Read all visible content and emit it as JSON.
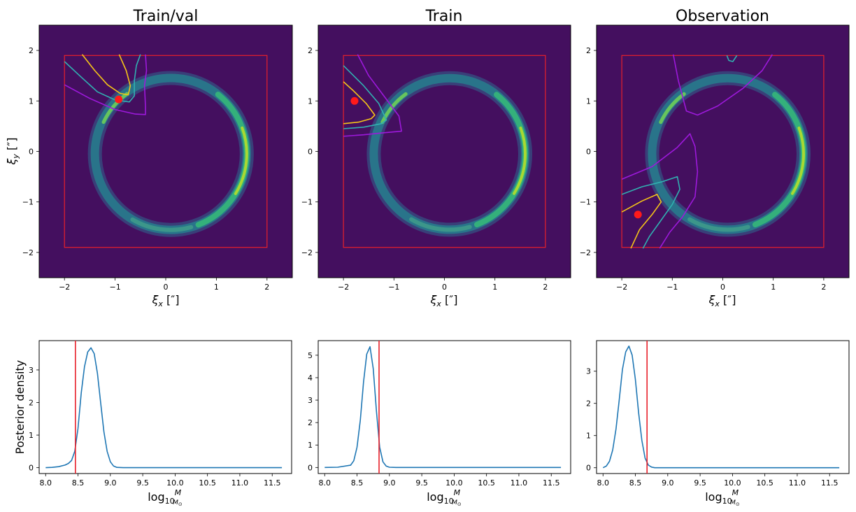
{
  "chart_data": [
    {
      "type": "heatmap",
      "title": "Train/val",
      "xlabel": "ξx [″]",
      "ylabel": "ξy [″]",
      "xlim": [
        -2.5,
        2.5
      ],
      "ylim": [
        -2.5,
        2.5
      ],
      "xticks": [
        -2,
        -1,
        0,
        1,
        2
      ],
      "yticks": [
        -2,
        -1,
        0,
        1,
        2
      ],
      "box": {
        "x": [
          -2,
          2
        ],
        "y": [
          -1.9,
          1.9
        ]
      },
      "marker": {
        "x": -0.93,
        "y": 1.03
      },
      "contours": [
        {
          "level": "outer",
          "color": "#9d19db",
          "points": [
            [
              -2.0,
              1.32
            ],
            [
              -1.5,
              1.05
            ],
            [
              -1.0,
              0.83
            ],
            [
              -0.6,
              0.74
            ],
            [
              -0.4,
              0.73
            ],
            [
              -0.4,
              0.9
            ],
            [
              -0.42,
              1.3
            ],
            [
              -0.38,
              1.6
            ],
            [
              -0.4,
              1.92
            ]
          ]
        },
        {
          "level": "middle",
          "color": "#31b1b1",
          "points": [
            [
              -2.0,
              1.78
            ],
            [
              -1.7,
              1.5
            ],
            [
              -1.35,
              1.18
            ],
            [
              -1.0,
              1.02
            ],
            [
              -0.72,
              0.98
            ],
            [
              -0.62,
              1.1
            ],
            [
              -0.62,
              1.4
            ],
            [
              -0.58,
              1.7
            ],
            [
              -0.5,
              1.92
            ]
          ]
        },
        {
          "level": "inner",
          "color": "#f5c518",
          "points": [
            [
              -1.65,
              1.92
            ],
            [
              -1.4,
              1.6
            ],
            [
              -1.15,
              1.32
            ],
            [
              -0.9,
              1.15
            ],
            [
              -0.74,
              1.12
            ],
            [
              -0.7,
              1.3
            ],
            [
              -0.78,
              1.6
            ],
            [
              -0.92,
              1.92
            ]
          ]
        }
      ]
    },
    {
      "type": "heatmap",
      "title": "Train",
      "xlabel": "ξx [″]",
      "ylabel": "",
      "xlim": [
        -2.5,
        2.5
      ],
      "ylim": [
        -2.5,
        2.5
      ],
      "xticks": [
        -2,
        -1,
        0,
        1,
        2
      ],
      "yticks": [
        -2,
        -1,
        0,
        1,
        2
      ],
      "box": {
        "x": [
          -2,
          2
        ],
        "y": [
          -1.9,
          1.9
        ]
      },
      "marker": {
        "x": -1.78,
        "y": 1.0
      },
      "contours": [
        {
          "level": "outer",
          "color": "#9d19db",
          "points": [
            [
              -2.0,
              0.3
            ],
            [
              -1.6,
              0.33
            ],
            [
              -1.2,
              0.37
            ],
            [
              -0.85,
              0.4
            ],
            [
              -0.9,
              0.7
            ],
            [
              -1.2,
              1.1
            ],
            [
              -1.5,
              1.5
            ],
            [
              -1.72,
              1.92
            ]
          ]
        },
        {
          "level": "middle",
          "color": "#31b1b1",
          "points": [
            [
              -2.0,
              0.45
            ],
            [
              -1.6,
              0.48
            ],
            [
              -1.25,
              0.55
            ],
            [
              -1.15,
              0.62
            ],
            [
              -1.3,
              0.95
            ],
            [
              -1.6,
              1.3
            ],
            [
              -1.85,
              1.55
            ],
            [
              -2.0,
              1.7
            ]
          ]
        },
        {
          "level": "inner",
          "color": "#f5c518",
          "points": [
            [
              -2.0,
              0.55
            ],
            [
              -1.7,
              0.58
            ],
            [
              -1.45,
              0.65
            ],
            [
              -1.38,
              0.72
            ],
            [
              -1.55,
              0.95
            ],
            [
              -1.8,
              1.2
            ],
            [
              -2.0,
              1.38
            ]
          ]
        }
      ]
    },
    {
      "type": "heatmap",
      "title": "Observation",
      "xlabel": "ξx [″]",
      "ylabel": "",
      "xlim": [
        -2.5,
        2.5
      ],
      "ylim": [
        -2.5,
        2.5
      ],
      "xticks": [
        -2,
        -1,
        0,
        1,
        2
      ],
      "yticks": [
        -2,
        -1,
        0,
        1,
        2
      ],
      "box": {
        "x": [
          -2,
          2
        ],
        "y": [
          -1.9,
          1.9
        ]
      },
      "marker": {
        "x": -1.68,
        "y": -1.25
      },
      "contours": [
        {
          "level": "outer",
          "color": "#9d19db",
          "points": [
            [
              -2.0,
              -0.55
            ],
            [
              -1.4,
              -0.3
            ],
            [
              -0.9,
              0.08
            ],
            [
              -0.65,
              0.35
            ],
            [
              -0.55,
              0.1
            ],
            [
              -0.5,
              -0.4
            ],
            [
              -0.55,
              -0.9
            ],
            [
              -0.8,
              -1.3
            ],
            [
              -1.05,
              -1.6
            ],
            [
              -1.25,
              -1.92
            ]
          ]
        },
        {
          "level": "middle",
          "color": "#31b1b1",
          "points": [
            [
              -2.0,
              -0.85
            ],
            [
              -1.6,
              -0.7
            ],
            [
              -1.2,
              -0.6
            ],
            [
              -0.9,
              -0.5
            ],
            [
              -0.85,
              -0.75
            ],
            [
              -1.0,
              -1.05
            ],
            [
              -1.25,
              -1.4
            ],
            [
              -1.45,
              -1.68
            ],
            [
              -1.58,
              -1.92
            ]
          ]
        },
        {
          "level": "inner",
          "color": "#f5c518",
          "points": [
            [
              -2.0,
              -1.2
            ],
            [
              -1.6,
              -0.98
            ],
            [
              -1.3,
              -0.85
            ],
            [
              -1.22,
              -1.0
            ],
            [
              -1.4,
              -1.25
            ],
            [
              -1.65,
              -1.55
            ],
            [
              -1.82,
              -1.92
            ]
          ]
        },
        {
          "level": "upper-outer",
          "color": "#9d19db",
          "points": [
            [
              -0.98,
              1.92
            ],
            [
              -0.88,
              1.4
            ],
            [
              -0.72,
              0.8
            ],
            [
              -0.5,
              0.72
            ],
            [
              -0.1,
              0.9
            ],
            [
              0.4,
              1.25
            ],
            [
              0.78,
              1.6
            ],
            [
              0.98,
              1.92
            ]
          ]
        },
        {
          "level": "upper-middle",
          "color": "#31b1b1",
          "points": [
            [
              0.08,
              1.9
            ],
            [
              0.12,
              1.8
            ],
            [
              0.2,
              1.78
            ],
            [
              0.28,
              1.9
            ]
          ]
        }
      ]
    },
    {
      "type": "line",
      "title": "",
      "xlabel": "log10 M/M⊙",
      "ylabel": "Posterior density",
      "xlim": [
        7.9,
        11.8
      ],
      "ylim": [
        -0.18,
        3.9
      ],
      "xticks": [
        8.0,
        8.5,
        9.0,
        9.5,
        10.0,
        10.5,
        11.0,
        11.5
      ],
      "yticks": [
        0,
        1,
        2,
        3
      ],
      "truth": 8.46,
      "x": [
        8.0,
        8.1,
        8.2,
        8.3,
        8.35,
        8.4,
        8.45,
        8.5,
        8.55,
        8.6,
        8.65,
        8.7,
        8.75,
        8.8,
        8.85,
        8.9,
        8.95,
        9.0,
        9.05,
        9.1,
        9.2,
        9.5,
        10.0,
        11.0,
        11.65
      ],
      "y": [
        0,
        0.01,
        0.03,
        0.08,
        0.13,
        0.22,
        0.5,
        1.2,
        2.3,
        3.1,
        3.55,
        3.68,
        3.5,
        2.9,
        2.0,
        1.1,
        0.5,
        0.18,
        0.05,
        0.01,
        0,
        0,
        0,
        0,
        0
      ]
    },
    {
      "type": "line",
      "title": "",
      "xlabel": "log10 M/M⊙",
      "ylabel": "",
      "xlim": [
        7.9,
        11.8
      ],
      "ylim": [
        -0.27,
        5.65
      ],
      "xticks": [
        8.0,
        8.5,
        9.0,
        9.5,
        10.0,
        10.5,
        11.0,
        11.5
      ],
      "yticks": [
        0,
        1,
        2,
        3,
        4,
        5
      ],
      "truth": 8.84,
      "x": [
        8.0,
        8.2,
        8.4,
        8.45,
        8.5,
        8.55,
        8.6,
        8.65,
        8.7,
        8.75,
        8.8,
        8.85,
        8.9,
        8.95,
        9.0,
        9.1,
        9.5,
        10.0,
        11.0,
        11.65
      ],
      "y": [
        0,
        0.01,
        0.1,
        0.3,
        0.9,
        2.1,
        3.8,
        5.05,
        5.38,
        4.4,
        2.5,
        0.9,
        0.25,
        0.06,
        0.01,
        0,
        0,
        0,
        0,
        0
      ]
    },
    {
      "type": "line",
      "title": "",
      "xlabel": "log10 M/M⊙",
      "ylabel": "",
      "xlim": [
        7.9,
        11.8
      ],
      "ylim": [
        -0.18,
        3.95
      ],
      "xticks": [
        8.0,
        8.5,
        9.0,
        9.5,
        10.0,
        10.5,
        11.0,
        11.5
      ],
      "yticks": [
        0,
        1,
        2,
        3
      ],
      "truth": 8.68,
      "x": [
        8.0,
        8.05,
        8.1,
        8.15,
        8.2,
        8.25,
        8.3,
        8.35,
        8.4,
        8.45,
        8.5,
        8.55,
        8.6,
        8.65,
        8.7,
        8.75,
        8.8,
        8.9,
        9.0,
        9.5,
        10.0,
        11.0,
        11.65
      ],
      "y": [
        0,
        0.05,
        0.2,
        0.55,
        1.2,
        2.1,
        3.05,
        3.6,
        3.78,
        3.5,
        2.75,
        1.7,
        0.85,
        0.3,
        0.08,
        0.02,
        0,
        0,
        0,
        0,
        0,
        0,
        0
      ]
    }
  ]
}
